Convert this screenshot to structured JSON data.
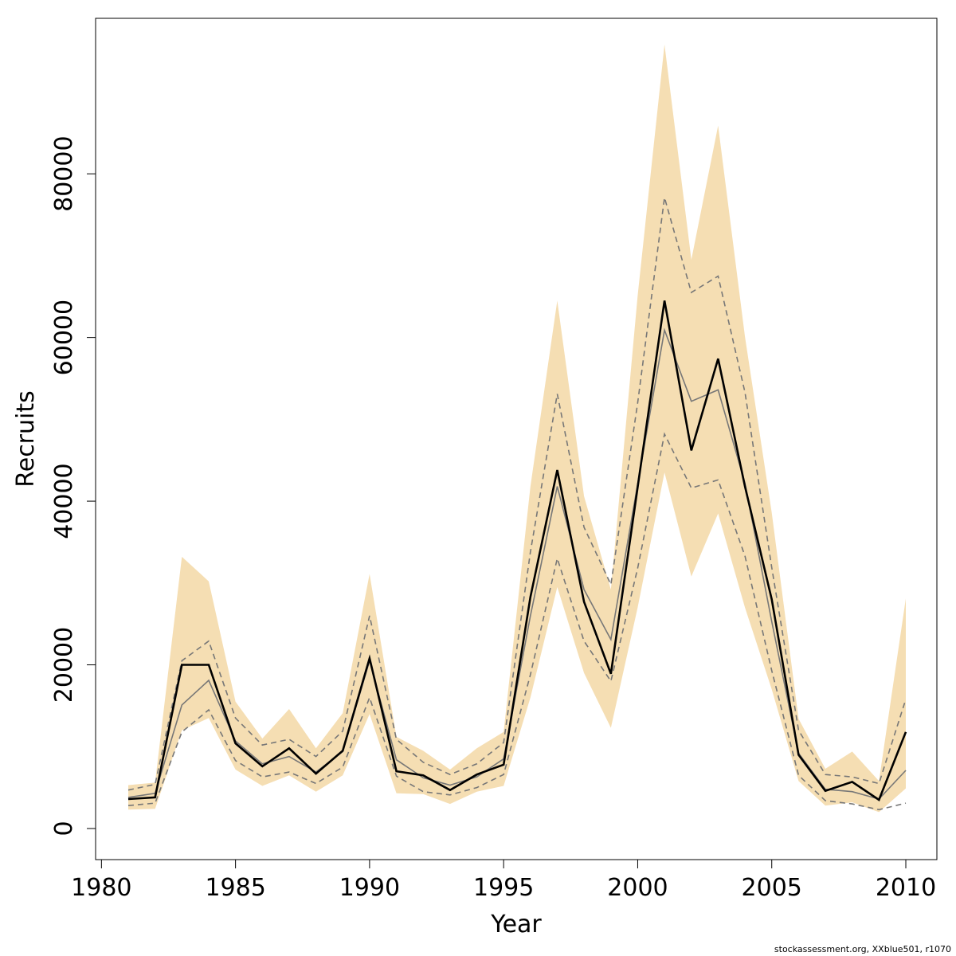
{
  "chart_data": {
    "type": "line",
    "title": "",
    "xlabel": "Year",
    "ylabel": "Recruits",
    "xlim": [
      1981,
      2010
    ],
    "ylim": [
      -3800,
      99000
    ],
    "x_ticks": [
      1980,
      1985,
      1990,
      1995,
      2000,
      2005,
      2010
    ],
    "y_ticks": [
      0,
      20000,
      40000,
      60000,
      80000
    ],
    "x": [
      1981,
      1982,
      1983,
      1984,
      1985,
      1986,
      1987,
      1988,
      1989,
      1990,
      1991,
      1992,
      1993,
      1994,
      1995,
      1996,
      1997,
      1998,
      1999,
      2000,
      2001,
      2002,
      2003,
      2004,
      2005,
      2006,
      2007,
      2008,
      2009,
      2010
    ],
    "series": [
      {
        "style": "band",
        "color": "#f5deb3",
        "lower": [
          2300,
          2400,
          12000,
          13500,
          7200,
          5200,
          6500,
          4500,
          6500,
          14000,
          4300,
          4200,
          3000,
          4500,
          5200,
          16000,
          29500,
          19000,
          12300,
          27000,
          43500,
          30800,
          38500,
          27000,
          17000,
          5800,
          2800,
          3200,
          2000,
          4900
        ],
        "upper": [
          5300,
          5600,
          33200,
          30200,
          15500,
          11000,
          14600,
          9800,
          14100,
          31100,
          11200,
          9500,
          7200,
          9800,
          11800,
          41800,
          64500,
          40600,
          29200,
          65100,
          95800,
          69500,
          85900,
          60100,
          38600,
          13400,
          7300,
          9400,
          5800,
          28100
        ]
      },
      {
        "style": "dashed-upper",
        "color": "#777777",
        "values": [
          4700,
          5400,
          20500,
          22900,
          13500,
          10200,
          10900,
          8800,
          11900,
          26000,
          10900,
          8100,
          6600,
          7900,
          10500,
          33800,
          53100,
          36800,
          29800,
          52000,
          77100,
          65500,
          67500,
          53300,
          31900,
          12000,
          6600,
          6300,
          5500,
          15800
        ]
      },
      {
        "style": "dashed-lower",
        "color": "#777777",
        "values": [
          2800,
          3100,
          11800,
          14500,
          8300,
          6300,
          6900,
          5500,
          7500,
          16000,
          6400,
          4500,
          4100,
          5000,
          6600,
          18800,
          33000,
          22900,
          18000,
          31800,
          48200,
          41600,
          42600,
          33300,
          19300,
          6500,
          3400,
          3000,
          2300,
          3100
        ]
      },
      {
        "style": "median",
        "color": "#777777",
        "values": [
          3800,
          4300,
          15100,
          18100,
          10700,
          7900,
          8800,
          6900,
          9400,
          20500,
          8400,
          6200,
          5300,
          6300,
          8500,
          26000,
          41800,
          29200,
          23100,
          42100,
          60900,
          52200,
          53600,
          42200,
          25300,
          9200,
          4800,
          4500,
          3600,
          7100
        ]
      },
      {
        "style": "estimate",
        "color": "#000000",
        "values": [
          3600,
          3800,
          20000,
          20000,
          10400,
          7600,
          9800,
          6700,
          9500,
          20800,
          7000,
          6500,
          4700,
          6600,
          7800,
          28300,
          43800,
          27700,
          18900,
          41700,
          64500,
          46200,
          57400,
          41800,
          28000,
          9000,
          4600,
          5700,
          3500,
          11800
        ]
      }
    ]
  },
  "footer": {
    "text": "stockassessment.org, XXblue501, r1070"
  }
}
